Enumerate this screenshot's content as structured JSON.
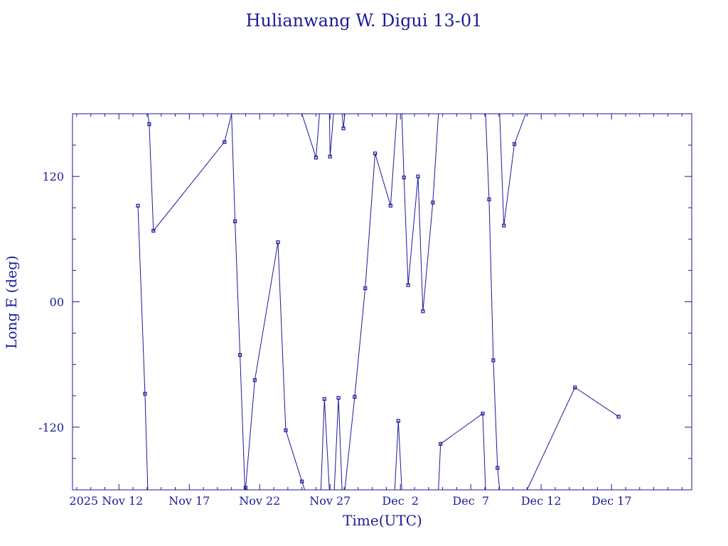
{
  "chart_data": {
    "type": "line",
    "title": "Hulianwang W. Digui 13-01",
    "xlabel": "Time(UTC)",
    "ylabel": "Long E (deg)",
    "x_tick_labels": [
      "2025 Nov 12",
      "Nov 17",
      "Nov 22",
      "Nov 27",
      "Dec  2",
      "Dec  7",
      "Dec 12",
      "Dec 17"
    ],
    "x_tick_values": [
      12,
      17,
      22,
      27,
      32,
      37,
      42,
      47
    ],
    "x_unit_note": "x values are days counted from Nov 1, 2025 (Nov 12 = 12, Dec 2 = 32)",
    "xlim": [
      8.7,
      52.7
    ],
    "ylim": [
      -180,
      180
    ],
    "y_tick_labels": [
      "-120",
      "00",
      "120"
    ],
    "y_tick_values": [
      -120,
      0,
      120
    ],
    "grid": false,
    "segments": [
      [
        [
          13.35,
          92
        ],
        [
          13.85,
          -88
        ],
        [
          14.05,
          -180
        ]
      ],
      [
        [
          14.05,
          180
        ],
        [
          14.15,
          170
        ],
        [
          14.45,
          68
        ],
        [
          19.5,
          153
        ],
        [
          20.0,
          180
        ]
      ],
      [
        [
          20.0,
          180
        ],
        [
          20.25,
          77
        ],
        [
          20.6,
          -51
        ],
        [
          20.95,
          -180
        ]
      ],
      [
        [
          19.9,
          -180
        ],
        [
          20.0,
          -180
        ]
      ],
      [
        [
          21.0,
          -178
        ],
        [
          21.65,
          -75
        ],
        [
          23.3,
          57
        ],
        [
          23.85,
          -123
        ],
        [
          25.0,
          -172
        ],
        [
          25.2,
          -180
        ]
      ],
      [
        [
          25.0,
          180
        ],
        [
          26.0,
          138
        ],
        [
          26.25,
          180
        ]
      ],
      [
        [
          26.35,
          -180
        ],
        [
          26.6,
          -93
        ],
        [
          26.95,
          -180
        ]
      ],
      [
        [
          26.95,
          180
        ],
        [
          27.0,
          139
        ],
        [
          27.25,
          180
        ]
      ],
      [
        [
          27.3,
          -180
        ],
        [
          27.6,
          -92
        ],
        [
          27.85,
          -180
        ]
      ],
      [
        [
          27.85,
          180
        ],
        [
          27.95,
          166
        ],
        [
          28.05,
          180
        ]
      ],
      [
        [
          28.05,
          -180
        ],
        [
          28.75,
          -91
        ],
        [
          29.5,
          13
        ],
        [
          30.2,
          142
        ],
        [
          31.3,
          92
        ],
        [
          31.75,
          180
        ]
      ],
      [
        [
          31.6,
          -180
        ],
        [
          31.85,
          -114
        ],
        [
          32.1,
          -180
        ]
      ],
      [
        [
          32.1,
          180
        ],
        [
          32.25,
          119
        ],
        [
          32.55,
          16
        ],
        [
          33.25,
          120
        ],
        [
          33.6,
          -9
        ],
        [
          34.3,
          95
        ],
        [
          34.7,
          180
        ]
      ],
      [
        [
          34.7,
          -180
        ],
        [
          34.85,
          -136
        ],
        [
          37.85,
          -107
        ],
        [
          38.05,
          -180
        ]
      ],
      [
        [
          38.05,
          180
        ],
        [
          38.3,
          98
        ],
        [
          38.6,
          -56
        ],
        [
          38.9,
          -159
        ],
        [
          39.05,
          -180
        ]
      ],
      [
        [
          39.05,
          180
        ],
        [
          39.35,
          73
        ],
        [
          40.1,
          151
        ],
        [
          40.9,
          180
        ]
      ],
      [
        [
          41.0,
          -180
        ],
        [
          44.4,
          -82
        ],
        [
          47.5,
          -110
        ]
      ]
    ]
  }
}
